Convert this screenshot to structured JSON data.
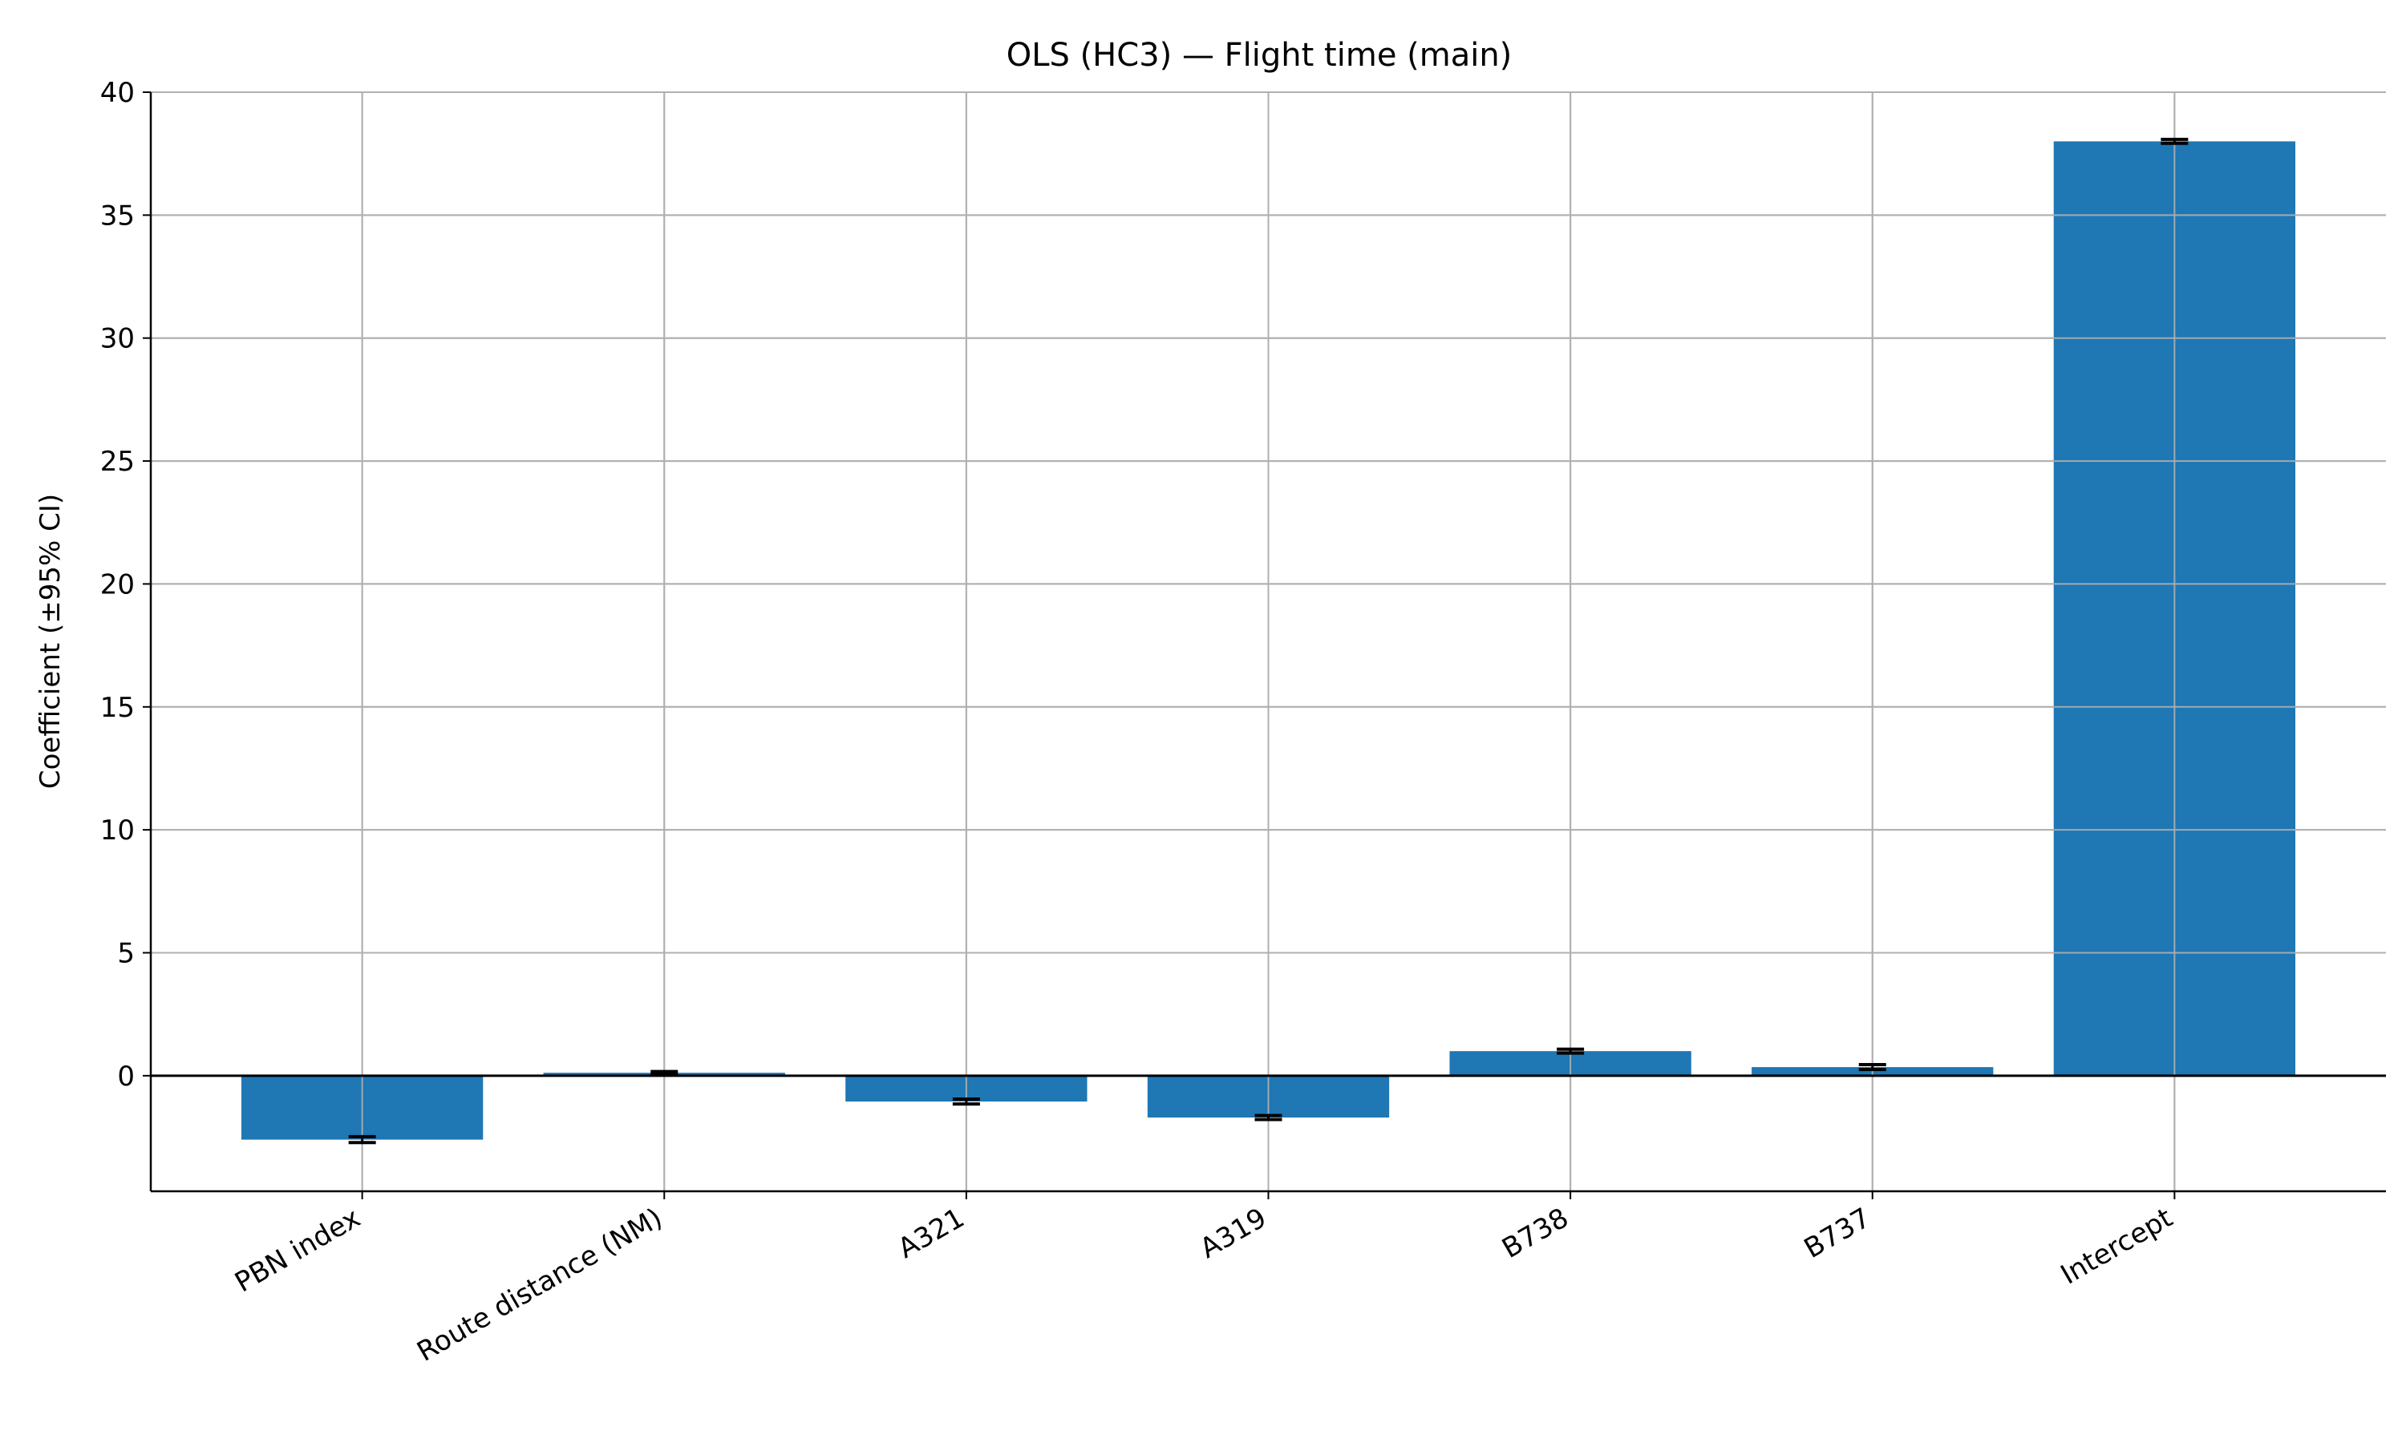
{
  "chart_data": {
    "type": "bar",
    "title": "OLS (HC3) — Flight time (main)",
    "xlabel": "",
    "ylabel": "Coefficient (±95% CI)",
    "categories": [
      "PBN index",
      "Route distance (NM)",
      "A321",
      "A319",
      "B738",
      "B737",
      "Intercept"
    ],
    "values": [
      -2.6,
      0.12,
      -1.05,
      -1.7,
      1.0,
      0.35,
      38.0
    ],
    "ci_half_width": [
      0.12,
      0.05,
      0.1,
      0.08,
      0.08,
      0.1,
      0.08
    ],
    "ylim": [
      -4.7,
      40
    ],
    "yticks": [
      0,
      5,
      10,
      15,
      20,
      25,
      30,
      35,
      40
    ],
    "grid": true,
    "zero_line": true,
    "bar_color": "#1f77b4",
    "errorbar_color": "#000000",
    "grid_color": "#b0b0b0"
  }
}
